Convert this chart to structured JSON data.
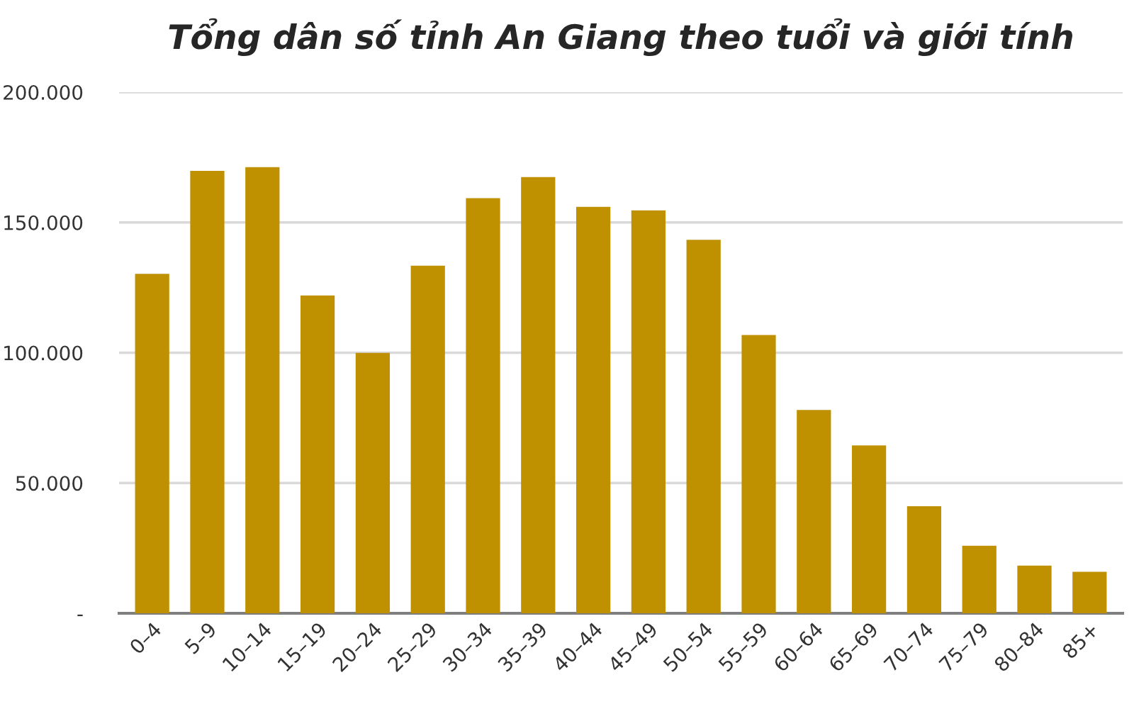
{
  "chart_data": {
    "type": "bar",
    "title": "Tổng dân số tỉnh An Giang theo tuổi và giới tính",
    "categories": [
      "0–4",
      "5–9",
      "10–14",
      "15–19",
      "20–24",
      "25–29",
      "30–34",
      "35–39",
      "40–44",
      "45–49",
      "50–54",
      "55–59",
      "60–64",
      "65–69",
      "70–74",
      "75–79",
      "80–84",
      "85+"
    ],
    "values": [
      130300,
      169800,
      171200,
      122000,
      99900,
      133400,
      159300,
      167400,
      156000,
      154600,
      143300,
      106800,
      78000,
      64400,
      41100,
      25900,
      18300,
      15900
    ],
    "color": "#bf9000",
    "ylim": [
      0,
      200000
    ],
    "yticks": [
      {
        "value": 0,
        "label": "-"
      },
      {
        "value": 50000,
        "label": "50.000"
      },
      {
        "value": 100000,
        "label": "100.000"
      },
      {
        "value": 150000,
        "label": "150.000"
      },
      {
        "value": 200000,
        "label": "200.000"
      }
    ],
    "grid": "y",
    "legend": false
  }
}
